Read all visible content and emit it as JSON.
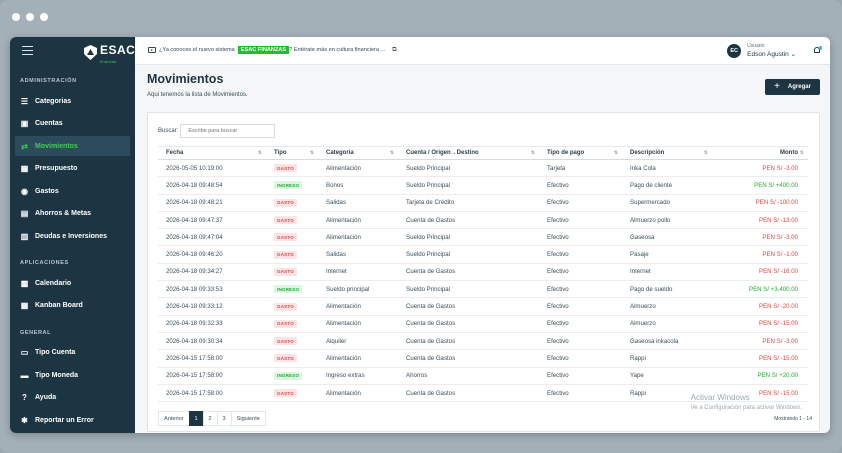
{
  "sidebar": {
    "logo_text": "ESAC",
    "logo_sub": "finanzas",
    "sections": [
      {
        "title": "ADMINISTRACIÓN",
        "items": [
          {
            "label": "Categorias",
            "icon": "list-icon",
            "glyph": "☰",
            "active": false
          },
          {
            "label": "Cuentas",
            "icon": "briefcase-icon",
            "glyph": "▣",
            "active": false
          },
          {
            "label": "Movimientos",
            "icon": "exchange-icon",
            "glyph": "⇄",
            "active": true
          },
          {
            "label": "Presupuesto",
            "icon": "calculator-icon",
            "glyph": "▦",
            "active": false
          },
          {
            "label": "Gastos",
            "icon": "coin-icon",
            "glyph": "◉",
            "active": false
          },
          {
            "label": "Ahorros & Metas",
            "icon": "piggy-bank-icon",
            "glyph": "▤",
            "active": false
          },
          {
            "label": "Deudas e Inversiones",
            "icon": "chart-icon",
            "glyph": "▥",
            "active": false
          }
        ]
      },
      {
        "title": "APLICACIONES",
        "items": [
          {
            "label": "Calendario",
            "icon": "calendar-icon",
            "glyph": "▩",
            "active": false
          },
          {
            "label": "Kanban Board",
            "icon": "kanban-icon",
            "glyph": "▦",
            "active": false
          }
        ]
      },
      {
        "title": "GENERAL",
        "items": [
          {
            "label": "Tipo Cuenta",
            "icon": "id-card-icon",
            "glyph": "▭",
            "active": false
          },
          {
            "label": "Tipo Moneda",
            "icon": "money-icon",
            "glyph": "▬",
            "active": false
          },
          {
            "label": "Ayuda",
            "icon": "help-icon",
            "glyph": "?",
            "active": false
          },
          {
            "label": "Reportar un Error",
            "icon": "bug-icon",
            "glyph": "✱",
            "active": false
          }
        ]
      }
    ]
  },
  "topbar": {
    "announce_pre": "¿Ya conoces el nuevo sistema",
    "announce_badge": "ESAC FINANZAS",
    "announce_post": "? Entérate más en cultura financiera ...",
    "user_label": "Usuario",
    "user_name": "Edson Agustin",
    "user_initials": "EC"
  },
  "page": {
    "title": "Movimientos",
    "subtitle": "Aqui tenemos la lista de Movimientos.",
    "add_label": "Agregar"
  },
  "search": {
    "label": "Buscar:",
    "placeholder": "Escribe para buscar"
  },
  "table": {
    "headers": [
      "Fecha",
      "Tipo",
      "Categoría",
      "Cuenta / Origen→Destino",
      "Tipo de pago",
      "Descripción",
      "Monto"
    ],
    "rows": [
      {
        "fecha": "2026-05-05 10:19:00",
        "tipo": "GASTO",
        "categoria": "Alimentación",
        "cuenta": "Sueldo Principal",
        "pago": "Tarjeta",
        "descripcion": "Inka Cola",
        "monto": "PEN S/ -3.00"
      },
      {
        "fecha": "2026-04-18 09:48:54",
        "tipo": "INGRESO",
        "categoria": "Bonos",
        "cuenta": "Sueldo Principal",
        "pago": "Efectivo",
        "descripcion": "Pago de cliente",
        "monto": "PEN S/ +400.00"
      },
      {
        "fecha": "2026-04-18 09:48:21",
        "tipo": "GASTO",
        "categoria": "Salidas",
        "cuenta": "Tarjeta de Crédito",
        "pago": "Efectivo",
        "descripcion": "Supermercado",
        "monto": "PEN S/ -100.00"
      },
      {
        "fecha": "2026-04-18 09:47:37",
        "tipo": "GASTO",
        "categoria": "Alimentación",
        "cuenta": "Cuenta de Gastos",
        "pago": "Efectivo",
        "descripcion": "Almuerzo pollo",
        "monto": "PEN S/ -13.00"
      },
      {
        "fecha": "2026-04-18 09:47:04",
        "tipo": "GASTO",
        "categoria": "Alimentación",
        "cuenta": "Sueldo Principal",
        "pago": "Efectivo",
        "descripcion": "Gaseosa",
        "monto": "PEN S/ -3.00"
      },
      {
        "fecha": "2026-04-18 09:46:20",
        "tipo": "GASTO",
        "categoria": "Salidas",
        "cuenta": "Sueldo Principal",
        "pago": "Efectivo",
        "descripcion": "Pasaje",
        "monto": "PEN S/ -1.00"
      },
      {
        "fecha": "2026-04-18 09:34:27",
        "tipo": "GASTO",
        "categoria": "Internet",
        "cuenta": "Cuenta de Gastos",
        "pago": "Efectivo",
        "descripcion": "Internet",
        "monto": "PEN S/ -16.00"
      },
      {
        "fecha": "2026-04-18 09:33:53",
        "tipo": "INGRESO",
        "categoria": "Sueldo principal",
        "cuenta": "Sueldo Principal",
        "pago": "Efectivo",
        "descripcion": "Pago de sueldo",
        "monto": "PEN S/ +3,400.00"
      },
      {
        "fecha": "2026-04-18 09:33:12",
        "tipo": "GASTO",
        "categoria": "Alimentación",
        "cuenta": "Cuenta de Gastos",
        "pago": "Efectivo",
        "descripcion": "Almuerzo",
        "monto": "PEN S/ -20.00"
      },
      {
        "fecha": "2026-04-18 09:32:33",
        "tipo": "GASTO",
        "categoria": "Alimentación",
        "cuenta": "Cuenta de Gastos",
        "pago": "Efectivo",
        "descripcion": "Almuerzo",
        "monto": "PEN S/ -15.00"
      },
      {
        "fecha": "2026-04-18 09:30:34",
        "tipo": "GASTO",
        "categoria": "Alquiler",
        "cuenta": "Cuenta de Gastos",
        "pago": "Efectivo",
        "descripcion": "Gaseosa inkacola",
        "monto": "PEN S/ -3.00"
      },
      {
        "fecha": "2026-04-15 17:58:00",
        "tipo": "GASTO",
        "categoria": "Alimentación",
        "cuenta": "Cuenta de Gastos",
        "pago": "Efectivo",
        "descripcion": "Rappi",
        "monto": "PEN S/ -15.00"
      },
      {
        "fecha": "2026-04-15 17:58:00",
        "tipo": "INGRESO",
        "categoria": "Ingreso extras",
        "cuenta": "Ahorros",
        "pago": "Efectivo",
        "descripcion": "Yape",
        "monto": "PEN S/ +20.00"
      },
      {
        "fecha": "2026-04-15 17:58:00",
        "tipo": "GASTO",
        "categoria": "Alimentación",
        "cuenta": "Cuenta de Gastos",
        "pago": "Efectivo",
        "descripcion": "Rappi",
        "monto": "PEN S/ -15.00"
      }
    ]
  },
  "pagination": {
    "prev": "Anterior",
    "pages": [
      "1",
      "2",
      "3"
    ],
    "active": "1",
    "next": "Siguiente",
    "showing": "Mostrando 1 - 14"
  },
  "watermark": {
    "line1": "Activar Windows",
    "line2": "Ve a Configuración para activar Windows."
  },
  "colors": {
    "sidebar_bg": "#1d3543",
    "accent_green": "#3cd04f",
    "negative": "#e0473e",
    "positive": "#1fae2c"
  }
}
